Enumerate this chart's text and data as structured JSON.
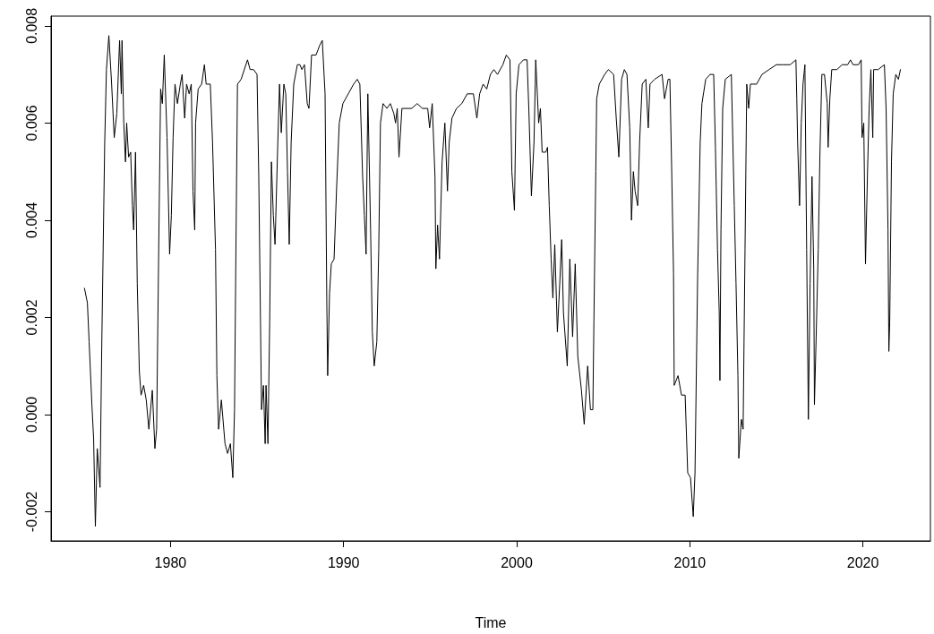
{
  "chart_data": {
    "type": "line",
    "xlabel": "Time",
    "color": "#000000",
    "marker": "none",
    "line_style": "solid",
    "grid": false,
    "xlim": [
      1973.1,
      2023.9
    ],
    "xticks": [
      1980,
      1990,
      2000,
      2010,
      2020
    ],
    "ylim": [
      -0.0026,
      0.0082
    ],
    "yticks": [
      {
        "value": -0.002,
        "label": "-0.002"
      },
      {
        "value": 0,
        "label": "0.000"
      },
      {
        "value": 0.002,
        "label": "0.002"
      },
      {
        "value": 0.004,
        "label": "0.004"
      },
      {
        "value": 0.006,
        "label": "0.006"
      },
      {
        "value": 0.008,
        "label": "0.008"
      }
    ],
    "x": [
      1975.03,
      1975.2,
      1975.3,
      1975.46,
      1975.56,
      1975.66,
      1975.77,
      1975.93,
      1976.03,
      1976.2,
      1976.3,
      1976.44,
      1976.6,
      1976.75,
      1976.9,
      1977.06,
      1977.16,
      1977.2,
      1977.3,
      1977.4,
      1977.47,
      1977.58,
      1977.7,
      1977.8,
      1977.87,
      1977.98,
      1978.08,
      1978.2,
      1978.3,
      1978.45,
      1978.6,
      1978.75,
      1978.95,
      1979.1,
      1979.2,
      1979.27,
      1979.38,
      1979.43,
      1979.53,
      1979.64,
      1979.8,
      1979.95,
      1980.05,
      1980.15,
      1980.26,
      1980.4,
      1980.57,
      1980.67,
      1980.82,
      1980.93,
      1981.08,
      1981.2,
      1981.3,
      1981.4,
      1981.45,
      1981.6,
      1981.8,
      1981.96,
      1982.06,
      1982.3,
      1982.43,
      1982.6,
      1982.68,
      1982.78,
      1982.94,
      1983.15,
      1983.3,
      1983.46,
      1983.6,
      1983.7,
      1983.77,
      1983.87,
      1984.08,
      1984.45,
      1984.6,
      1984.8,
      1985.0,
      1985.1,
      1985.2,
      1985.26,
      1985.37,
      1985.47,
      1985.52,
      1985.63,
      1985.73,
      1985.83,
      1985.94,
      1986.04,
      1986.2,
      1986.3,
      1986.4,
      1986.55,
      1986.66,
      1986.76,
      1986.86,
      1986.97,
      1987.12,
      1987.33,
      1987.48,
      1987.59,
      1987.74,
      1987.9,
      1988.0,
      1988.15,
      1988.41,
      1988.62,
      1988.77,
      1988.93,
      1989.03,
      1989.08,
      1989.19,
      1989.29,
      1989.45,
      1989.6,
      1989.75,
      1989.96,
      1990.27,
      1990.58,
      1990.79,
      1990.94,
      1991.1,
      1991.2,
      1991.3,
      1991.4,
      1991.56,
      1991.66,
      1991.77,
      1991.92,
      1992.03,
      1992.13,
      1992.28,
      1992.5,
      1992.7,
      1992.9,
      1993.0,
      1993.1,
      1993.2,
      1993.37,
      1993.63,
      1993.94,
      1994.25,
      1994.55,
      1994.86,
      1994.97,
      1995.12,
      1995.28,
      1995.33,
      1995.43,
      1995.54,
      1995.69,
      1995.85,
      1996.0,
      1996.1,
      1996.26,
      1996.52,
      1996.83,
      1997.14,
      1997.5,
      1997.7,
      1997.86,
      1998.06,
      1998.27,
      1998.48,
      1998.68,
      1998.89,
      1999.2,
      1999.4,
      1999.61,
      1999.72,
      1999.87,
      1999.97,
      2000.13,
      2000.39,
      2000.6,
      2000.7,
      2000.85,
      2001.0,
      2001.1,
      2001.27,
      2001.37,
      2001.47,
      2001.68,
      2001.78,
      2001.88,
      2001.99,
      2002.09,
      2002.2,
      2002.35,
      2002.5,
      2002.6,
      2002.7,
      2002.92,
      2003.07,
      2003.23,
      2003.38,
      2003.53,
      2003.74,
      2003.9,
      2004.1,
      2004.26,
      2004.4,
      2004.46,
      2004.57,
      2004.62,
      2004.77,
      2005.08,
      2005.3,
      2005.6,
      2005.75,
      2005.9,
      2006.06,
      2006.22,
      2006.37,
      2006.53,
      2006.63,
      2006.74,
      2006.84,
      2006.99,
      2007.1,
      2007.25,
      2007.46,
      2007.6,
      2007.7,
      2007.97,
      2008.4,
      2008.54,
      2008.75,
      2008.85,
      2008.95,
      2009.06,
      2009.1,
      2009.32,
      2009.52,
      2009.73,
      2009.88,
      2010.04,
      2010.2,
      2010.3,
      2010.45,
      2010.6,
      2010.7,
      2010.92,
      2011.17,
      2011.38,
      2011.48,
      2011.6,
      2011.7,
      2011.74,
      2011.8,
      2011.9,
      2012.05,
      2012.4,
      2012.57,
      2012.67,
      2012.78,
      2012.83,
      2012.98,
      2013.08,
      2013.19,
      2013.29,
      2013.4,
      2013.5,
      2013.86,
      2014.17,
      2014.58,
      2015.0,
      2015.4,
      2015.8,
      2016.13,
      2016.18,
      2016.23,
      2016.34,
      2016.44,
      2016.54,
      2016.65,
      2016.75,
      2016.85,
      2016.95,
      2017.06,
      2017.16,
      2017.2,
      2017.3,
      2017.42,
      2017.52,
      2017.63,
      2017.78,
      2017.94,
      2017.99,
      2018.09,
      2018.2,
      2018.5,
      2018.8,
      2019.12,
      2019.28,
      2019.43,
      2019.74,
      2019.9,
      2019.95,
      2020.05,
      2020.15,
      2020.26,
      2020.36,
      2020.46,
      2020.57,
      2020.62,
      2020.88,
      2021.24,
      2021.34,
      2021.45,
      2021.5,
      2021.55,
      2021.65,
      2021.75,
      2021.9,
      2022.05,
      2022.17
    ],
    "values": [
      0.0026,
      0.0023,
      0.0015,
      0.0002,
      -0.0005,
      -0.0023,
      -0.0007,
      -0.0015,
      0.0014,
      0.0056,
      0.0071,
      0.0078,
      0.0068,
      0.0057,
      0.0062,
      0.0077,
      0.0066,
      0.0077,
      0.006,
      0.0052,
      0.006,
      0.0053,
      0.0054,
      0.0043,
      0.0038,
      0.0054,
      0.0027,
      0.0009,
      0.0004,
      0.0006,
      0.0003,
      -0.0003,
      0.0005,
      -0.0007,
      -0.0003,
      0.0019,
      0.0052,
      0.0067,
      0.0064,
      0.0074,
      0.0057,
      0.0033,
      0.0041,
      0.0057,
      0.0068,
      0.0064,
      0.0068,
      0.007,
      0.0061,
      0.0068,
      0.0066,
      0.0068,
      0.0046,
      0.0038,
      0.006,
      0.0067,
      0.0068,
      0.0072,
      0.0068,
      0.0068,
      0.0056,
      0.0034,
      0.0008,
      -0.0003,
      0.0003,
      -0.0006,
      -0.0008,
      -0.0006,
      -0.0013,
      0.0001,
      0.003,
      0.0068,
      0.0069,
      0.0073,
      0.0071,
      0.0071,
      0.007,
      0.0049,
      0.0019,
      0.0001,
      0.0006,
      -0.0006,
      0.0006,
      -0.0006,
      0.0019,
      0.0052,
      0.0041,
      0.0035,
      0.0056,
      0.0068,
      0.0058,
      0.0068,
      0.0066,
      0.005,
      0.0035,
      0.0056,
      0.0068,
      0.0072,
      0.0072,
      0.0071,
      0.0072,
      0.0064,
      0.0063,
      0.0074,
      0.0074,
      0.0076,
      0.0077,
      0.0066,
      0.0023,
      0.0008,
      0.0025,
      0.0031,
      0.0032,
      0.0047,
      0.006,
      0.0064,
      0.0066,
      0.0068,
      0.0069,
      0.0068,
      0.0049,
      0.0041,
      0.0033,
      0.0066,
      0.0038,
      0.0017,
      0.001,
      0.0015,
      0.0034,
      0.006,
      0.0064,
      0.0063,
      0.0064,
      0.0062,
      0.006,
      0.0063,
      0.0053,
      0.0063,
      0.0063,
      0.0063,
      0.0064,
      0.0063,
      0.0063,
      0.0059,
      0.0064,
      0.0049,
      0.003,
      0.0039,
      0.0032,
      0.0052,
      0.006,
      0.0046,
      0.0056,
      0.0061,
      0.0063,
      0.0064,
      0.0066,
      0.0066,
      0.0061,
      0.0066,
      0.0068,
      0.0067,
      0.007,
      0.0071,
      0.007,
      0.0072,
      0.0074,
      0.0073,
      0.005,
      0.0042,
      0.0066,
      0.0072,
      0.0073,
      0.0073,
      0.0063,
      0.0045,
      0.0056,
      0.0073,
      0.006,
      0.0063,
      0.0054,
      0.0054,
      0.0055,
      0.0043,
      0.0032,
      0.0024,
      0.0035,
      0.0017,
      0.0028,
      0.0036,
      0.0021,
      0.001,
      0.0032,
      0.0016,
      0.0031,
      0.0012,
      0.0005,
      -0.0002,
      0.001,
      0.0001,
      0.0001,
      0.0019,
      0.005,
      0.0065,
      0.0068,
      0.007,
      0.0071,
      0.007,
      0.0061,
      0.0053,
      0.0069,
      0.0071,
      0.007,
      0.0059,
      0.004,
      0.005,
      0.0046,
      0.0043,
      0.0056,
      0.0068,
      0.0069,
      0.0059,
      0.0068,
      0.0069,
      0.007,
      0.0065,
      0.0069,
      0.0069,
      0.0051,
      0.0029,
      0.0006,
      0.0008,
      0.0004,
      0.0004,
      -0.0012,
      -0.0013,
      -0.0021,
      -0.0012,
      0.0028,
      0.0056,
      0.0064,
      0.0069,
      0.007,
      0.007,
      0.0055,
      0.0034,
      0.0021,
      0.0007,
      0.0038,
      0.0063,
      0.0069,
      0.007,
      0.0043,
      0.0027,
      0.0008,
      -0.0009,
      -0.0001,
      -0.0003,
      0.0034,
      0.0068,
      0.0063,
      0.0068,
      0.0068,
      0.007,
      0.0071,
      0.0072,
      0.0072,
      0.0072,
      0.0073,
      0.0065,
      0.0056,
      0.0043,
      0.006,
      0.0068,
      0.0072,
      0.0034,
      -0.0001,
      0.0027,
      0.0049,
      0.003,
      0.0002,
      0.0016,
      0.0034,
      0.0054,
      0.007,
      0.007,
      0.0064,
      0.0055,
      0.0065,
      0.0071,
      0.0071,
      0.0072,
      0.0072,
      0.0073,
      0.0072,
      0.0072,
      0.0073,
      0.0057,
      0.006,
      0.0031,
      0.0049,
      0.0063,
      0.0071,
      0.0057,
      0.0071,
      0.0071,
      0.0072,
      0.0063,
      0.0038,
      0.0013,
      0.0019,
      0.0052,
      0.0066,
      0.007,
      0.0069,
      0.0071
    ]
  }
}
